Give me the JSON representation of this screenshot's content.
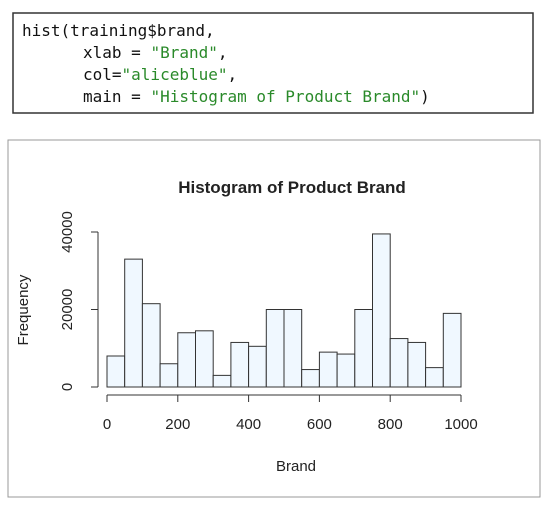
{
  "code": {
    "lines": [
      [
        "hist(training$brand,"
      ],
      [
        "xlab = ",
        "\"Brand\"",
        ","
      ],
      [
        "col=",
        "\"aliceblue\"",
        ","
      ],
      [
        "main = ",
        "\"Histogram of Product Brand\"",
        ")"
      ]
    ]
  },
  "chart_data": {
    "type": "histogram",
    "title": "Histogram of Product Brand",
    "x_label": "Brand",
    "y_label": "Frequency",
    "bins": [
      0,
      50,
      100,
      150,
      200,
      250,
      300,
      350,
      400,
      450,
      500,
      550,
      600,
      650,
      700,
      750,
      800,
      850,
      900,
      950,
      1000
    ],
    "counts": [
      8000,
      33000,
      21500,
      6000,
      14000,
      14500,
      3000,
      11500,
      10500,
      20000,
      20000,
      4500,
      9000,
      8500,
      20000,
      39500,
      12500,
      11500,
      5000,
      19000
    ],
    "color": "aliceblue",
    "xlim": [
      0,
      1000
    ],
    "xticks": [
      0,
      200,
      400,
      600,
      800,
      1000
    ],
    "ylim": [
      0,
      40000
    ],
    "yticks": [
      0,
      20000,
      40000
    ]
  }
}
